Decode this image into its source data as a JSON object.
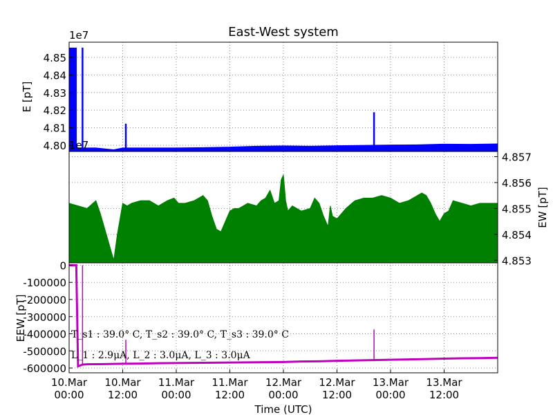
{
  "figure": {
    "title": "East-West system",
    "xlabel": "Time (UTC)",
    "x_ticks": [
      {
        "line1": "10.Mar",
        "line2": "00:00",
        "hour": 0
      },
      {
        "line1": "10.Mar",
        "line2": "12:00",
        "hour": 12
      },
      {
        "line1": "11.Mar",
        "line2": "00:00",
        "hour": 24
      },
      {
        "line1": "11.Mar",
        "line2": "12:00",
        "hour": 36
      },
      {
        "line1": "12.Mar",
        "line2": "00:00",
        "hour": 48
      },
      {
        "line1": "12.Mar",
        "line2": "12:00",
        "hour": 60
      },
      {
        "line1": "13.Mar",
        "line2": "00:00",
        "hour": 72
      },
      {
        "line1": "13.Mar",
        "line2": "12:00",
        "hour": 84
      }
    ],
    "x_range_hours": [
      0,
      96
    ]
  },
  "chart_data": [
    {
      "type": "area",
      "panel": "top",
      "ylabel": "E [pT]",
      "offset_label": "1e7",
      "y_ticks": [
        "4.80",
        "4.81",
        "4.82",
        "4.83",
        "4.84",
        "4.85"
      ],
      "ylim": [
        4.7965,
        4.8586
      ],
      "color": "#0000ff",
      "grid": true,
      "series": [
        {
          "x": [
            0,
            6,
            10,
            12,
            18,
            24,
            30,
            36,
            42,
            48,
            54,
            60,
            66,
            72,
            78,
            84,
            90,
            96
          ],
          "values": [
            4.7985,
            4.7985,
            4.7975,
            4.7985,
            4.7985,
            4.7985,
            4.7987,
            4.799,
            4.7995,
            4.7997,
            4.7995,
            4.7998,
            4.8,
            4.8002,
            4.8003,
            4.8007,
            4.8006,
            4.8008
          ]
        }
      ],
      "spikes": [
        {
          "x": 0,
          "x_end": 1.7,
          "value": 4.8555
        },
        {
          "x": 3.0,
          "value": 4.8555
        },
        {
          "x": 12.7,
          "value": 4.8123
        },
        {
          "x": 68.3,
          "value": 4.8188
        }
      ]
    },
    {
      "type": "area",
      "panel": "middle",
      "ylabel": "EW [pT]",
      "y_ticks": [
        "4.853",
        "4.854",
        "4.855",
        "4.856",
        "4.857"
      ],
      "ylim": [
        4.8529,
        4.8572
      ],
      "color": "#008000",
      "grid": true,
      "series": [
        {
          "x": [
            0,
            2,
            4,
            6,
            7,
            8,
            9,
            10,
            10.8,
            12,
            13,
            14,
            16,
            18,
            20,
            22,
            23.5,
            24.5,
            26,
            28,
            30,
            31,
            32,
            33,
            34,
            35,
            36,
            37,
            38,
            40,
            42,
            43,
            44,
            45,
            46,
            47,
            47.5,
            48,
            48.5,
            49,
            50,
            52,
            54,
            55,
            56,
            57,
            58,
            58.5,
            59,
            60,
            62,
            64,
            66,
            68,
            70,
            72,
            74,
            76,
            78,
            79,
            80,
            81,
            82,
            83,
            84,
            85,
            86,
            88,
            90,
            92,
            94,
            96
          ],
          "values": [
            4.8552,
            4.8551,
            4.855,
            4.8553,
            4.8548,
            4.8542,
            4.8536,
            4.853,
            4.854,
            4.8552,
            4.8551,
            4.8552,
            4.8553,
            4.8553,
            4.8551,
            4.8553,
            4.8554,
            4.8552,
            4.8552,
            4.8553,
            4.8555,
            4.8553,
            4.8547,
            4.8542,
            4.8541,
            4.8545,
            4.8549,
            4.855,
            4.855,
            4.8552,
            4.8551,
            4.8553,
            4.8554,
            4.8557,
            4.8552,
            4.8553,
            4.8561,
            4.8563,
            4.8553,
            4.8549,
            4.8551,
            4.8549,
            4.855,
            4.8554,
            4.8552,
            4.8547,
            4.8543,
            4.8551,
            4.8547,
            4.8546,
            4.855,
            4.8553,
            4.8554,
            4.8554,
            4.8555,
            4.8554,
            4.8552,
            4.8553,
            4.8555,
            4.8556,
            4.8555,
            4.8552,
            4.8548,
            4.8545,
            4.8548,
            4.8549,
            4.8553,
            4.8552,
            4.8551,
            4.8552,
            4.8552,
            4.8552
          ]
        }
      ]
    },
    {
      "type": "line",
      "panel": "bottom",
      "ylabel": "EEW [pT]",
      "y_ticks": [
        "0",
        "-100000",
        "-200000",
        "-300000",
        "-400000",
        "-500000",
        "-600000"
      ],
      "y_tick_values": [
        0,
        -100000,
        -200000,
        -300000,
        -400000,
        -500000,
        -600000
      ],
      "ylim": [
        -628000,
        14000
      ],
      "color": "#bf00bf",
      "grid": true,
      "series": [
        {
          "x": [
            0,
            1.6,
            2.0,
            3.0,
            4,
            8,
            12,
            16,
            20,
            24,
            28,
            32,
            36,
            40,
            44,
            48,
            52,
            56,
            60,
            64,
            68,
            72,
            76,
            80,
            84,
            88,
            92,
            96
          ],
          "values": [
            0,
            0,
            -590000,
            -580000,
            -578000,
            -577000,
            -575000,
            -574000,
            -572000,
            -571000,
            -570000,
            -569000,
            -568000,
            -567000,
            -566000,
            -565000,
            -562000,
            -561000,
            -558000,
            -556000,
            -554000,
            -552000,
            -550000,
            -548000,
            -545000,
            -543000,
            -542000,
            -540000
          ]
        }
      ],
      "spikes": [
        {
          "x": 3.0,
          "value": 0
        },
        {
          "x": 12.7,
          "value": -435000
        },
        {
          "x": 68.3,
          "value": -375000
        }
      ],
      "annotations": [
        {
          "text": "T_s1 : 39.0° C, T_s2 : 39.0° C, T_s3 : 39.0° C"
        },
        {
          "text": "L_1 : 2.9μA, L_2 : 3.0μA, L_3 : 3.0μA"
        }
      ]
    }
  ]
}
